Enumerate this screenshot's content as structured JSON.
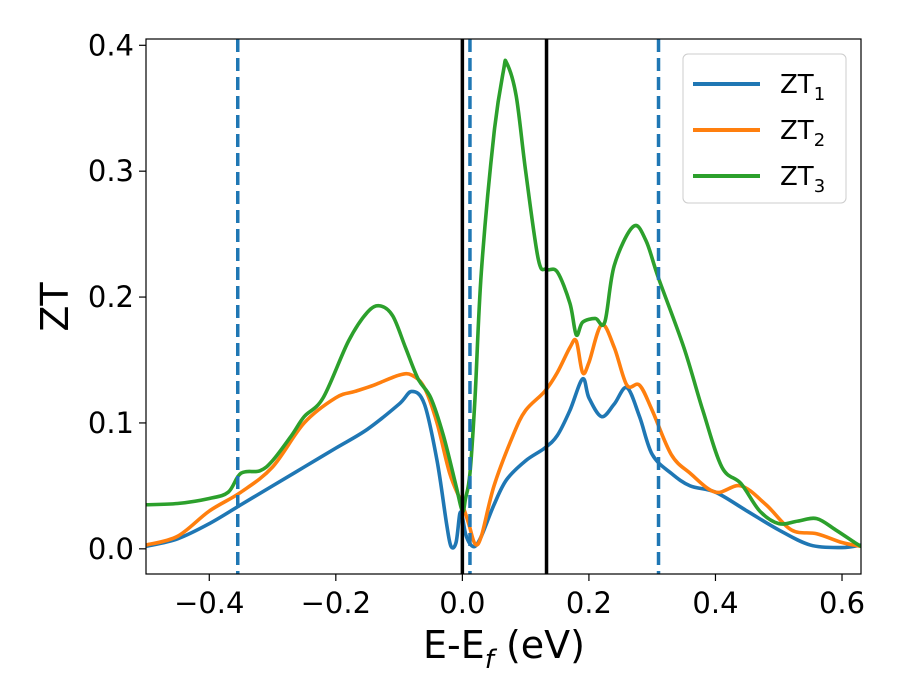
{
  "chart_data": {
    "type": "line",
    "xlabel_main": "E-E",
    "xlabel_sub": "f",
    "xlabel_unit": " (eV)",
    "ylabel": "ZT",
    "xlim": [
      -0.5,
      0.63
    ],
    "ylim": [
      -0.02,
      0.405
    ],
    "xticks": [
      -0.4,
      -0.2,
      0.0,
      0.2,
      0.4,
      0.6
    ],
    "xtick_labels": [
      "−0.4",
      "−0.2",
      "0.0",
      "0.2",
      "0.4",
      "0.6"
    ],
    "yticks": [
      0.0,
      0.1,
      0.2,
      0.3,
      0.4
    ],
    "ytick_labels": [
      "0.0",
      "0.1",
      "0.2",
      "0.3",
      "0.4"
    ],
    "grid": false,
    "legend_position": "top-right",
    "vlines_solid": [
      0.0,
      0.133
    ],
    "vlines_dashed": [
      -0.355,
      0.012,
      0.31
    ],
    "vline_solid_color": "#000000",
    "vline_dashed_color": "#1f77b4",
    "series": [
      {
        "name": "ZT",
        "name_sub": "1",
        "color": "#1f77b4",
        "points": [
          [
            -0.5,
            0.002
          ],
          [
            -0.45,
            0.008
          ],
          [
            -0.4,
            0.02
          ],
          [
            -0.35,
            0.035
          ],
          [
            -0.3,
            0.05
          ],
          [
            -0.25,
            0.065
          ],
          [
            -0.2,
            0.08
          ],
          [
            -0.15,
            0.095
          ],
          [
            -0.1,
            0.115
          ],
          [
            -0.08,
            0.125
          ],
          [
            -0.06,
            0.115
          ],
          [
            -0.04,
            0.07
          ],
          [
            -0.025,
            0.02
          ],
          [
            -0.018,
            0.002
          ],
          [
            -0.01,
            0.005
          ],
          [
            -0.004,
            0.028
          ],
          [
            0.0,
            0.025
          ],
          [
            0.005,
            0.012
          ],
          [
            0.012,
            0.004
          ],
          [
            0.02,
            0.002
          ],
          [
            0.03,
            0.01
          ],
          [
            0.05,
            0.035
          ],
          [
            0.07,
            0.055
          ],
          [
            0.1,
            0.07
          ],
          [
            0.13,
            0.08
          ],
          [
            0.15,
            0.09
          ],
          [
            0.17,
            0.11
          ],
          [
            0.19,
            0.135
          ],
          [
            0.2,
            0.12
          ],
          [
            0.22,
            0.105
          ],
          [
            0.24,
            0.115
          ],
          [
            0.26,
            0.128
          ],
          [
            0.28,
            0.105
          ],
          [
            0.3,
            0.075
          ],
          [
            0.33,
            0.06
          ],
          [
            0.36,
            0.05
          ],
          [
            0.4,
            0.045
          ],
          [
            0.45,
            0.03
          ],
          [
            0.5,
            0.015
          ],
          [
            0.55,
            0.003
          ],
          [
            0.6,
            0.001
          ],
          [
            0.63,
            0.003
          ]
        ]
      },
      {
        "name": "ZT",
        "name_sub": "2",
        "color": "#ff7f0e",
        "points": [
          [
            -0.5,
            0.003
          ],
          [
            -0.45,
            0.01
          ],
          [
            -0.4,
            0.03
          ],
          [
            -0.35,
            0.045
          ],
          [
            -0.3,
            0.065
          ],
          [
            -0.25,
            0.1
          ],
          [
            -0.2,
            0.12
          ],
          [
            -0.17,
            0.125
          ],
          [
            -0.14,
            0.13
          ],
          [
            -0.1,
            0.138
          ],
          [
            -0.08,
            0.138
          ],
          [
            -0.06,
            0.128
          ],
          [
            -0.04,
            0.1
          ],
          [
            -0.02,
            0.06
          ],
          [
            0.0,
            0.035
          ],
          [
            0.01,
            0.02
          ],
          [
            0.02,
            0.004
          ],
          [
            0.03,
            0.01
          ],
          [
            0.05,
            0.05
          ],
          [
            0.08,
            0.09
          ],
          [
            0.1,
            0.11
          ],
          [
            0.13,
            0.125
          ],
          [
            0.15,
            0.14
          ],
          [
            0.17,
            0.16
          ],
          [
            0.18,
            0.165
          ],
          [
            0.19,
            0.14
          ],
          [
            0.2,
            0.148
          ],
          [
            0.22,
            0.178
          ],
          [
            0.24,
            0.16
          ],
          [
            0.26,
            0.13
          ],
          [
            0.28,
            0.13
          ],
          [
            0.3,
            0.11
          ],
          [
            0.33,
            0.075
          ],
          [
            0.36,
            0.06
          ],
          [
            0.4,
            0.045
          ],
          [
            0.44,
            0.05
          ],
          [
            0.48,
            0.035
          ],
          [
            0.52,
            0.015
          ],
          [
            0.56,
            0.012
          ],
          [
            0.6,
            0.005
          ],
          [
            0.63,
            0.002
          ]
        ]
      },
      {
        "name": "ZT",
        "name_sub": "3",
        "color": "#2ca02c",
        "points": [
          [
            -0.5,
            0.035
          ],
          [
            -0.45,
            0.036
          ],
          [
            -0.4,
            0.04
          ],
          [
            -0.37,
            0.045
          ],
          [
            -0.35,
            0.06
          ],
          [
            -0.32,
            0.062
          ],
          [
            -0.3,
            0.07
          ],
          [
            -0.27,
            0.09
          ],
          [
            -0.25,
            0.105
          ],
          [
            -0.22,
            0.12
          ],
          [
            -0.18,
            0.165
          ],
          [
            -0.15,
            0.188
          ],
          [
            -0.13,
            0.193
          ],
          [
            -0.11,
            0.185
          ],
          [
            -0.09,
            0.16
          ],
          [
            -0.07,
            0.135
          ],
          [
            -0.05,
            0.12
          ],
          [
            -0.03,
            0.09
          ],
          [
            -0.01,
            0.05
          ],
          [
            0.0,
            0.03
          ],
          [
            0.005,
            0.04
          ],
          [
            0.012,
            0.06
          ],
          [
            0.02,
            0.12
          ],
          [
            0.03,
            0.22
          ],
          [
            0.05,
            0.33
          ],
          [
            0.065,
            0.38
          ],
          [
            0.07,
            0.386
          ],
          [
            0.085,
            0.36
          ],
          [
            0.1,
            0.3
          ],
          [
            0.12,
            0.23
          ],
          [
            0.133,
            0.222
          ],
          [
            0.15,
            0.22
          ],
          [
            0.17,
            0.195
          ],
          [
            0.18,
            0.17
          ],
          [
            0.19,
            0.18
          ],
          [
            0.21,
            0.183
          ],
          [
            0.225,
            0.18
          ],
          [
            0.24,
            0.225
          ],
          [
            0.27,
            0.256
          ],
          [
            0.29,
            0.245
          ],
          [
            0.31,
            0.215
          ],
          [
            0.35,
            0.16
          ],
          [
            0.38,
            0.11
          ],
          [
            0.41,
            0.065
          ],
          [
            0.44,
            0.052
          ],
          [
            0.47,
            0.03
          ],
          [
            0.5,
            0.02
          ],
          [
            0.53,
            0.022
          ],
          [
            0.56,
            0.024
          ],
          [
            0.59,
            0.015
          ],
          [
            0.62,
            0.005
          ],
          [
            0.63,
            0.002
          ]
        ]
      }
    ]
  }
}
